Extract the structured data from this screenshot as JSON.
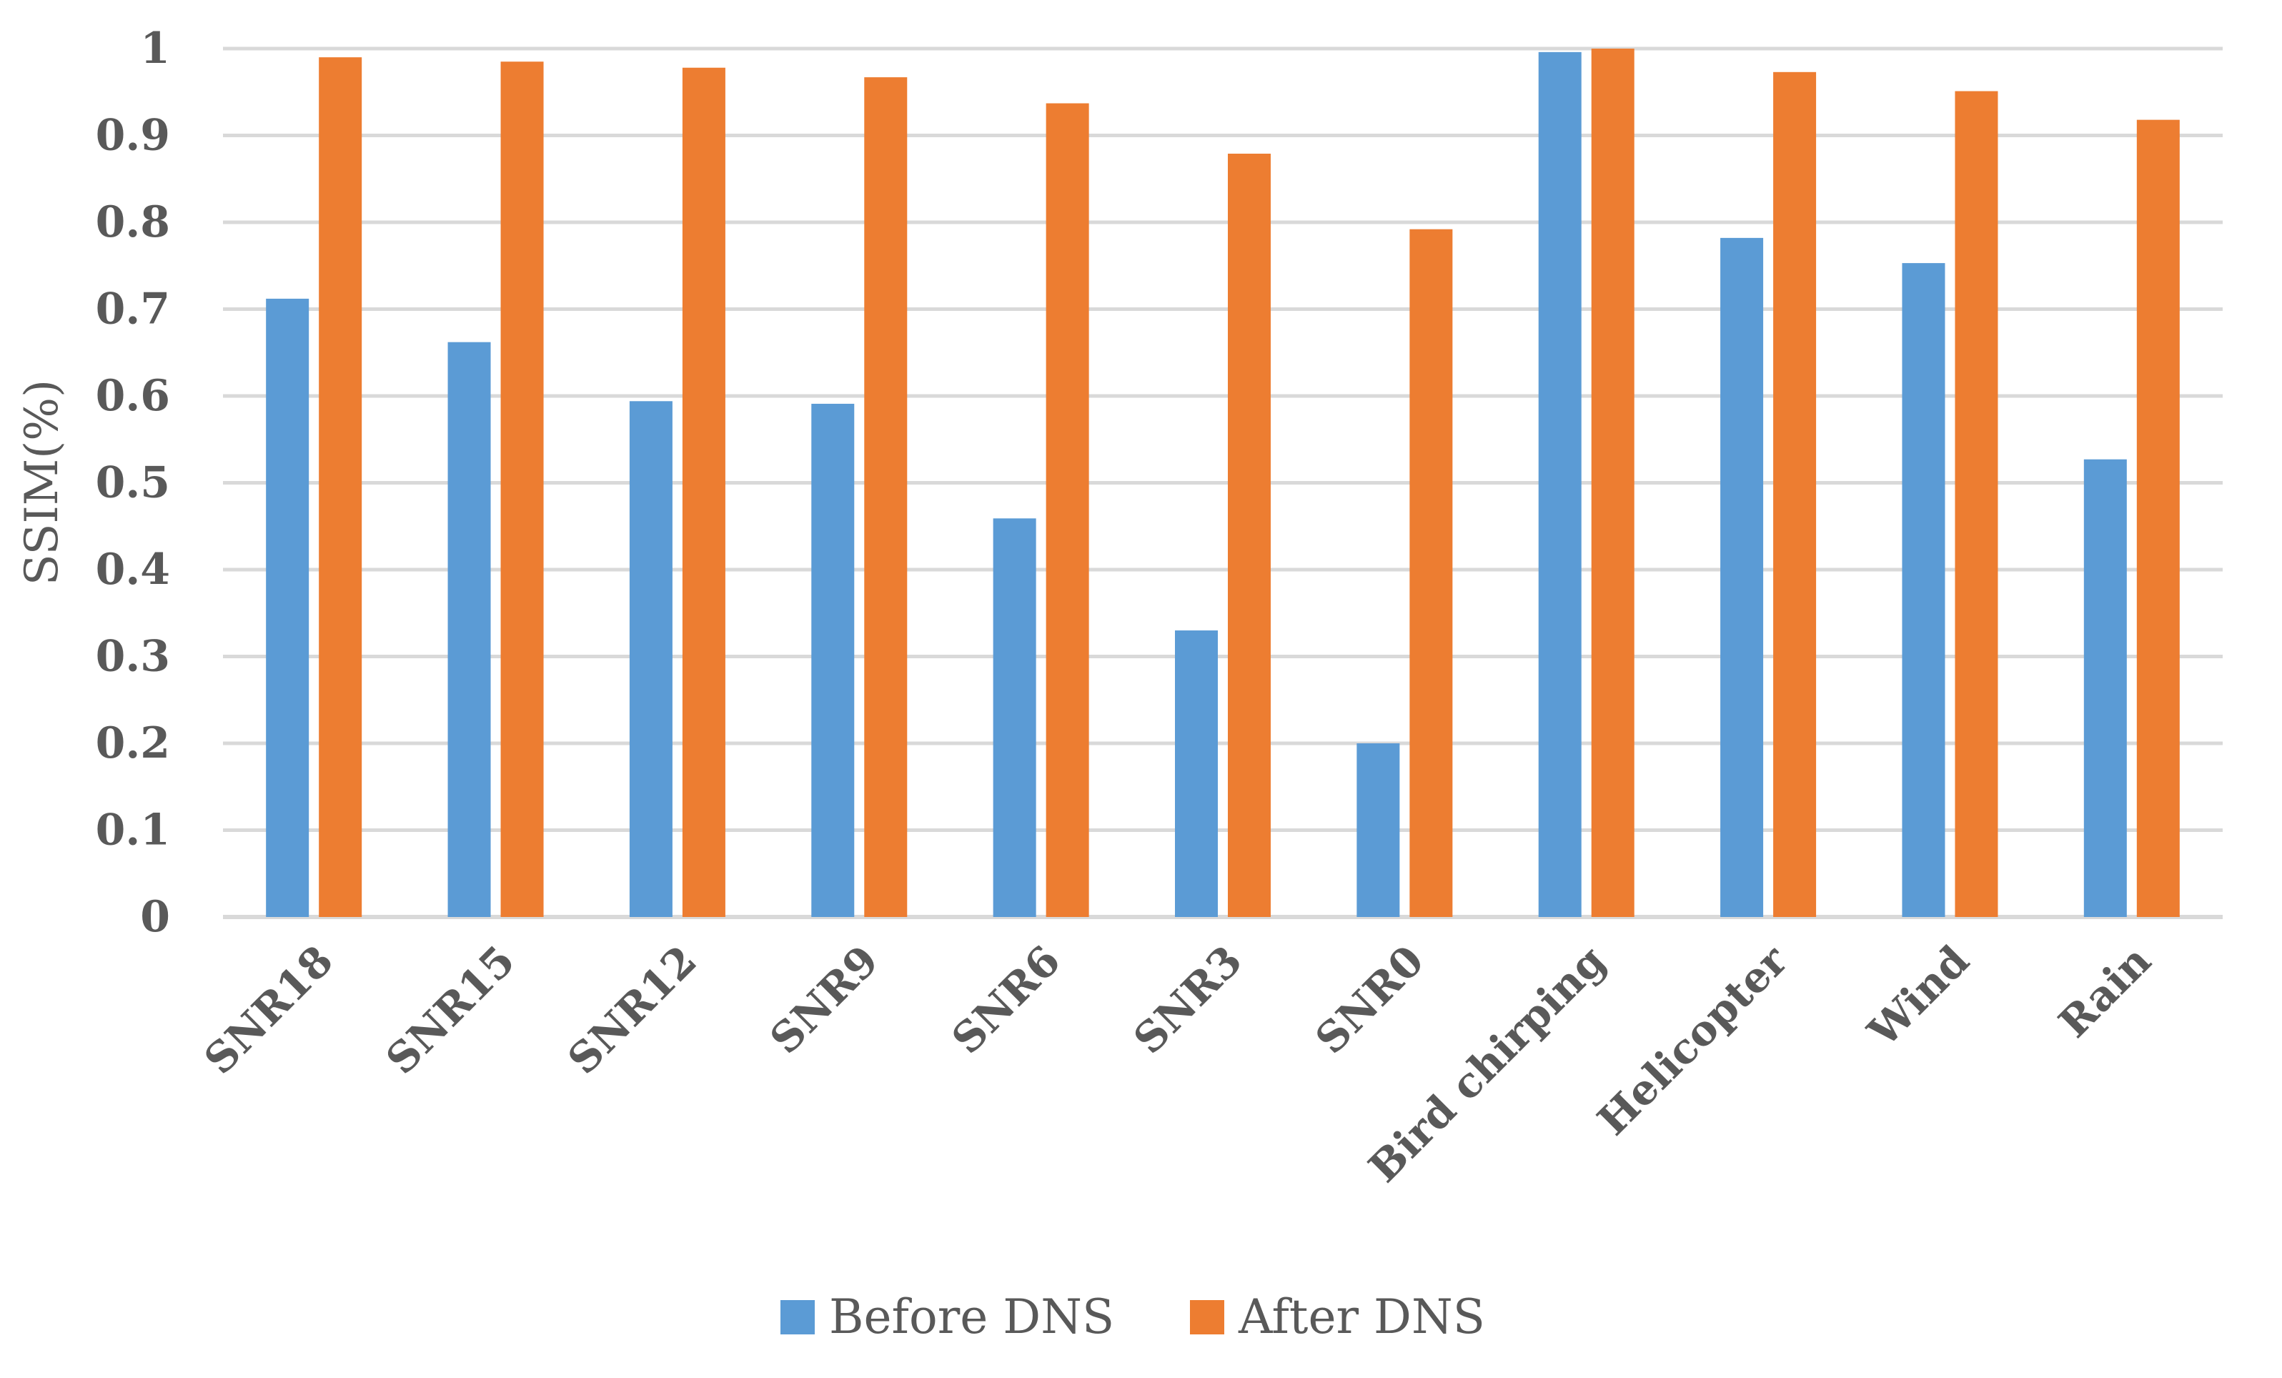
{
  "chart_data": {
    "type": "bar",
    "title": "",
    "xlabel": "",
    "ylabel": "SSIM(%)",
    "ylim": [
      0,
      1
    ],
    "yticks": [
      "0",
      "0.1",
      "0.2",
      "0.3",
      "0.4",
      "0.5",
      "0.6",
      "0.7",
      "0.8",
      "0.9",
      "1"
    ],
    "grid": true,
    "legend_position": "bottom",
    "categories": [
      "SNR18",
      "SNR15",
      "SNR12",
      "SNR9",
      "SNR6",
      "SNR3",
      "SNR0",
      "Bird chirping",
      "Helicopter",
      "Wind",
      "Rain"
    ],
    "series": [
      {
        "name": "Before DNS",
        "color": "#5b9bd5",
        "values": [
          0.712,
          0.662,
          0.594,
          0.591,
          0.459,
          0.33,
          0.2,
          0.996,
          0.782,
          0.753,
          0.527
        ]
      },
      {
        "name": "After DNS",
        "color": "#ed7d31",
        "values": [
          0.99,
          0.985,
          0.978,
          0.967,
          0.937,
          0.879,
          0.792,
          1.0,
          0.973,
          0.951,
          0.918
        ]
      }
    ]
  }
}
